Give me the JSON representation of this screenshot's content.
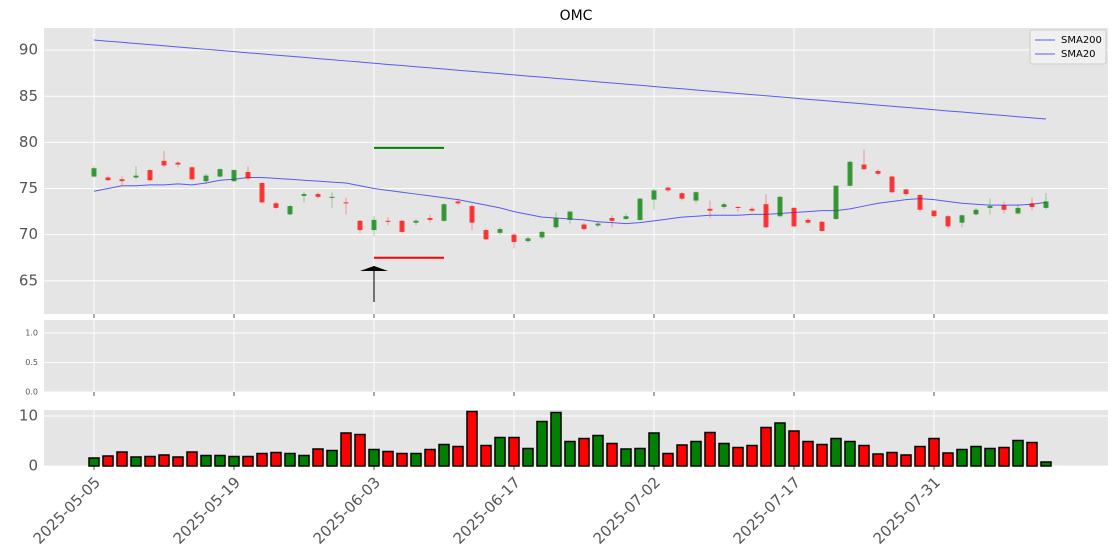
{
  "chart_data": [
    {
      "type": "candlestick",
      "title": "OMC",
      "grid": true,
      "legend": "upper right",
      "up_color": "green",
      "down_color": "red",
      "ylim": [
        61.4,
        92.4
      ],
      "yticks": [
        65,
        70,
        75,
        80,
        85,
        90
      ],
      "open": [
        76.3,
        76.2,
        76.0,
        76.2,
        77.0,
        78.0,
        77.8,
        77.3,
        75.8,
        76.3,
        75.8,
        76.8,
        75.6,
        73.4,
        72.2,
        74.2,
        74.4,
        74.0,
        73.5,
        71.5,
        70.5,
        71.5,
        71.5,
        71.3,
        71.8,
        71.5,
        73.6,
        73.1,
        70.5,
        70.2,
        70.0,
        69.3,
        69.7,
        70.8,
        71.6,
        71.1,
        71.0,
        71.8,
        71.7,
        71.6,
        73.8,
        75.1,
        74.5,
        73.7,
        72.8,
        73.0,
        73.0,
        72.8,
        73.3,
        72.0,
        72.9,
        71.6,
        71.4,
        71.7,
        75.3,
        77.6,
        76.9,
        76.3,
        74.9,
        74.3,
        72.6,
        72.0,
        71.3,
        72.2,
        72.9,
        73.2,
        72.3,
        73.4,
        72.9
      ],
      "high": [
        77.4,
        76.4,
        76.3,
        77.4,
        77.1,
        79.1,
        78.0,
        77.4,
        76.6,
        77.2,
        77.1,
        77.4,
        75.7,
        73.6,
        73.2,
        74.6,
        74.6,
        74.6,
        74.0,
        71.6,
        72.0,
        71.9,
        71.6,
        71.7,
        72.2,
        73.4,
        73.9,
        73.3,
        70.6,
        70.8,
        70.2,
        69.8,
        70.4,
        72.4,
        72.6,
        71.3,
        71.4,
        72.1,
        72.3,
        74.0,
        75.0,
        75.2,
        74.6,
        74.7,
        73.7,
        73.5,
        73.1,
        73.0,
        74.4,
        74.2,
        73.0,
        71.8,
        71.5,
        75.4,
        78.0,
        79.2,
        77.1,
        76.4,
        75.0,
        74.4,
        72.7,
        72.1,
        72.2,
        72.9,
        73.9,
        73.6,
        73.3,
        74.0,
        74.5
      ],
      "low": [
        76.2,
        75.8,
        75.3,
        76.0,
        75.8,
        77.3,
        77.3,
        75.9,
        75.5,
        76.2,
        75.7,
        75.9,
        73.4,
        72.8,
        72.1,
        73.5,
        73.9,
        72.9,
        72.2,
        70.2,
        69.8,
        71.0,
        70.2,
        71.0,
        71.3,
        71.4,
        73.2,
        70.5,
        69.4,
        70.0,
        68.5,
        69.1,
        69.5,
        70.6,
        71.2,
        70.4,
        70.8,
        70.8,
        71.6,
        71.5,
        72.7,
        74.6,
        73.7,
        73.4,
        71.8,
        72.8,
        72.5,
        72.4,
        70.7,
        71.9,
        70.8,
        71.1,
        70.3,
        71.6,
        75.2,
        77.0,
        76.4,
        74.5,
        74.2,
        72.5,
        71.8,
        70.7,
        70.8,
        72.1,
        72.2,
        72.3,
        72.2,
        72.6,
        72.7
      ],
      "close": [
        77.2,
        75.9,
        75.8,
        76.4,
        75.9,
        77.5,
        77.6,
        76.0,
        76.4,
        77.1,
        77.0,
        76.1,
        73.5,
        72.9,
        73.1,
        74.4,
        74.1,
        74.1,
        73.4,
        70.5,
        71.6,
        71.4,
        70.3,
        71.5,
        71.6,
        73.3,
        73.4,
        71.3,
        69.5,
        70.6,
        69.2,
        69.6,
        70.3,
        71.8,
        72.5,
        70.6,
        71.2,
        71.5,
        72.0,
        73.9,
        74.8,
        74.8,
        73.9,
        74.6,
        72.6,
        73.3,
        72.9,
        72.6,
        70.8,
        74.1,
        70.9,
        71.3,
        70.4,
        75.3,
        77.9,
        77.1,
        76.6,
        74.6,
        74.4,
        72.7,
        72.0,
        70.9,
        72.1,
        72.7,
        73.1,
        72.7,
        72.9,
        73.0,
        73.6
      ],
      "series": [
        {
          "name": "SMA200",
          "color": "#5a5af0",
          "values": [
            91.1,
            90.97,
            90.85,
            90.72,
            90.6,
            90.47,
            90.34,
            90.22,
            90.09,
            89.97,
            89.84,
            89.71,
            89.59,
            89.46,
            89.34,
            89.21,
            89.08,
            88.96,
            88.83,
            88.71,
            88.58,
            88.45,
            88.33,
            88.2,
            88.08,
            87.95,
            87.82,
            87.7,
            87.57,
            87.45,
            87.32,
            87.19,
            87.07,
            86.94,
            86.82,
            86.69,
            86.56,
            86.44,
            86.31,
            86.19,
            86.06,
            85.93,
            85.81,
            85.68,
            85.56,
            85.43,
            85.3,
            85.18,
            85.05,
            84.93,
            84.8,
            84.67,
            84.55,
            84.42,
            84.3,
            84.17,
            84.04,
            83.92,
            83.79,
            83.67,
            83.54,
            83.41,
            83.29,
            83.16,
            83.04,
            82.91,
            82.78,
            82.66,
            82.53
          ]
        },
        {
          "name": "SMA20",
          "color": "#5a5af0",
          "values": [
            74.7,
            75.0,
            75.3,
            75.3,
            75.4,
            75.4,
            75.5,
            75.4,
            75.6,
            75.9,
            76.0,
            76.2,
            76.2,
            76.1,
            76.0,
            75.9,
            75.8,
            75.7,
            75.6,
            75.3,
            75.0,
            74.8,
            74.6,
            74.4,
            74.2,
            74.0,
            73.8,
            73.5,
            73.2,
            72.9,
            72.5,
            72.2,
            71.9,
            71.8,
            71.7,
            71.6,
            71.4,
            71.3,
            71.2,
            71.3,
            71.5,
            71.7,
            71.9,
            72.0,
            72.1,
            72.1,
            72.1,
            72.2,
            72.2,
            72.3,
            72.4,
            72.5,
            72.6,
            72.6,
            72.8,
            73.1,
            73.4,
            73.6,
            73.8,
            73.9,
            73.8,
            73.6,
            73.4,
            73.3,
            73.2,
            73.2,
            73.2,
            73.3,
            73.5
          ]
        }
      ],
      "level_span": [
        20,
        25
      ],
      "levels": [
        {
          "value": 79.4,
          "color": "green"
        },
        {
          "value": 67.5,
          "color": "red"
        }
      ],
      "arrow": {
        "index": 20,
        "tip": 66.6,
        "tail": 62.7
      }
    },
    {
      "type": "line",
      "grid": true,
      "ylim": [
        0,
        1.22
      ],
      "yticks": [
        {
          "value": 0,
          "label": "0.0"
        },
        {
          "value": 0.5,
          "label": "0.5"
        },
        {
          "value": 1,
          "label": "1.0"
        }
      ]
    },
    {
      "type": "bar",
      "grid": true,
      "ylim": [
        0,
        11.2
      ],
      "yticks": [
        0,
        10
      ],
      "categories": [
        "2025-05-05",
        null,
        null,
        null,
        null,
        null,
        null,
        null,
        null,
        null,
        "2025-05-19",
        null,
        null,
        null,
        null,
        null,
        null,
        null,
        null,
        null,
        "2025-06-03",
        null,
        null,
        null,
        null,
        null,
        null,
        null,
        null,
        null,
        "2025-06-17",
        null,
        null,
        null,
        null,
        null,
        null,
        null,
        null,
        null,
        "2025-07-02",
        null,
        null,
        null,
        null,
        null,
        null,
        null,
        null,
        null,
        "2025-07-17",
        null,
        null,
        null,
        null,
        null,
        null,
        null,
        null,
        null,
        "2025-07-31",
        null,
        null,
        null,
        null,
        null,
        null,
        null,
        null
      ],
      "values": [
        1.6,
        2.0,
        2.8,
        1.8,
        1.9,
        2.2,
        1.8,
        2.8,
        2.1,
        2.1,
        1.9,
        1.9,
        2.5,
        2.7,
        2.5,
        2.1,
        3.4,
        3.1,
        6.6,
        6.3,
        3.3,
        2.9,
        2.5,
        2.5,
        3.3,
        4.3,
        3.9,
        10.9,
        4.1,
        5.7,
        5.7,
        3.5,
        8.9,
        10.7,
        4.9,
        5.5,
        6.1,
        4.5,
        3.4,
        3.5,
        6.6,
        2.5,
        4.2,
        4.9,
        6.7,
        4.5,
        3.7,
        4.1,
        7.7,
        8.6,
        7.0,
        4.9,
        4.3,
        5.5,
        4.9,
        4.1,
        2.4,
        2.7,
        2.2,
        3.9,
        5.5,
        2.6,
        3.3,
        3.9,
        3.5,
        3.7,
        5.1,
        4.7,
        0.8
      ]
    }
  ]
}
